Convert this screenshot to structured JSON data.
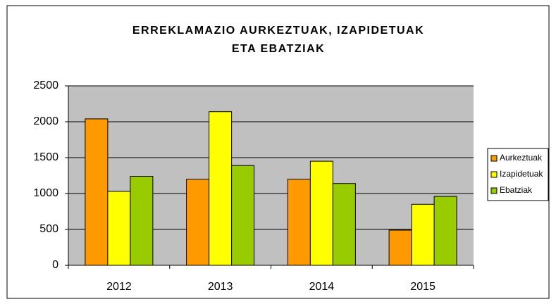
{
  "chart_data": {
    "type": "bar",
    "title": [
      "ERREKLAMAZIO AURKEZTUAK, IZAPIDETUAK",
      "ETA EBATZIAK"
    ],
    "categories": [
      "2012",
      "2013",
      "2014",
      "2015"
    ],
    "series": [
      {
        "name": "Aurkeztuak",
        "color": "#ff9900",
        "values": [
          2040,
          1200,
          1200,
          490
        ]
      },
      {
        "name": "Izapidetuak",
        "color": "#ffff00",
        "values": [
          1030,
          2140,
          1450,
          850
        ]
      },
      {
        "name": "Ebatziak",
        "color": "#99cc00",
        "values": [
          1240,
          1390,
          1140,
          960
        ]
      }
    ],
    "ylim": [
      0,
      2500
    ],
    "yticks": [
      0,
      500,
      1000,
      1500,
      2000,
      2500
    ],
    "grid": true,
    "legend": "right"
  }
}
